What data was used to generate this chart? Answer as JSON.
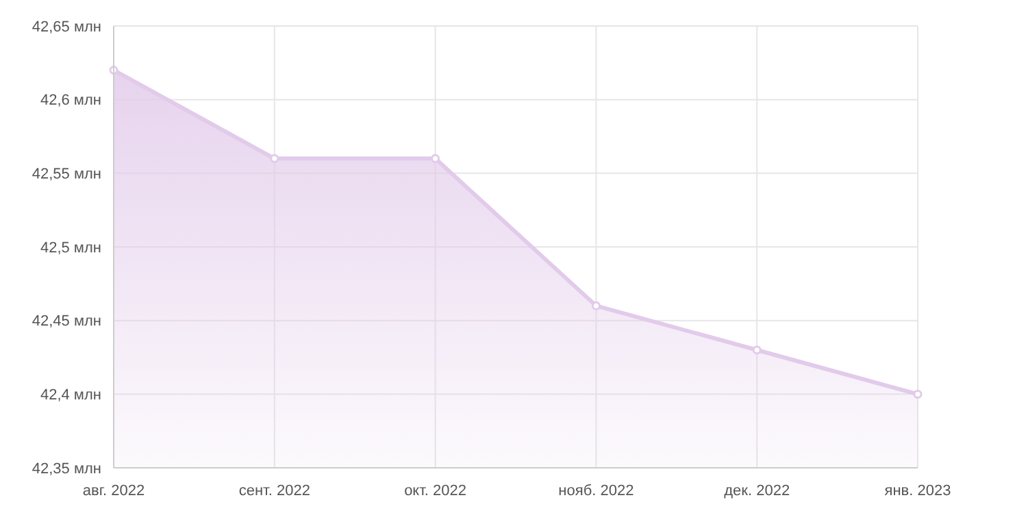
{
  "chart_data": {
    "type": "area",
    "categories": [
      "авг. 2022",
      "сент. 2022",
      "окт. 2022",
      "нояб. 2022",
      "дек. 2022",
      "янв. 2023"
    ],
    "series": [
      {
        "color": "#e2cbea",
        "values": [
          42.62,
          42.56,
          42.56,
          42.46,
          42.43,
          42.4
        ]
      }
    ],
    "ylim": [
      42.35,
      42.65
    ],
    "yticks": [
      {
        "value": 42.35,
        "label": "42,35 млн"
      },
      {
        "value": 42.4,
        "label": "42,4 млн"
      },
      {
        "value": 42.45,
        "label": "42,45 млн"
      },
      {
        "value": 42.5,
        "label": "42,5 млн"
      },
      {
        "value": 42.55,
        "label": "42,55 млн"
      },
      {
        "value": 42.6,
        "label": "42,6 млн"
      },
      {
        "value": 42.65,
        "label": "42,65 млн"
      }
    ],
    "grid": true,
    "marker": "circle",
    "line_style": "solid"
  }
}
